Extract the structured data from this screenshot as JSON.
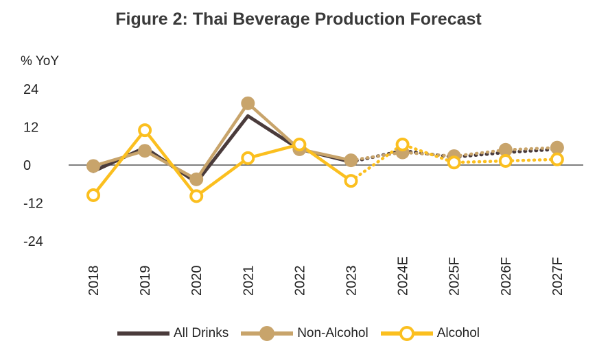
{
  "chart_data": {
    "type": "line",
    "title": "Figure 2: Thai Beverage Production Forecast",
    "ylabel": "% YoY",
    "xlabel": "",
    "ylim": [
      -24,
      24
    ],
    "yticks": [
      24,
      12,
      0,
      -12,
      -24
    ],
    "categories": [
      "2018",
      "2019",
      "2020",
      "2021",
      "2022",
      "2023",
      "2024E",
      "2025F",
      "2026F",
      "2027F"
    ],
    "actual_count": 6,
    "series": [
      {
        "name": "All Drinks",
        "color": "#4a3b3b",
        "marker": "none",
        "values": [
          -2.0,
          5.5,
          -5.5,
          15.5,
          5.0,
          1.0,
          4.5,
          2.5,
          4.0,
          5.0
        ]
      },
      {
        "name": "Non-Alcohol",
        "color": "#c8a46b",
        "marker": "filled",
        "values": [
          -0.3,
          4.5,
          -4.5,
          19.5,
          5.0,
          1.5,
          4.0,
          2.8,
          4.8,
          5.5
        ]
      },
      {
        "name": "Alcohol",
        "color": "#fbbf1f",
        "marker": "hollow",
        "values": [
          -9.5,
          11.0,
          -9.8,
          2.2,
          6.5,
          -5.0,
          6.5,
          0.8,
          1.3,
          1.8
        ]
      }
    ]
  }
}
